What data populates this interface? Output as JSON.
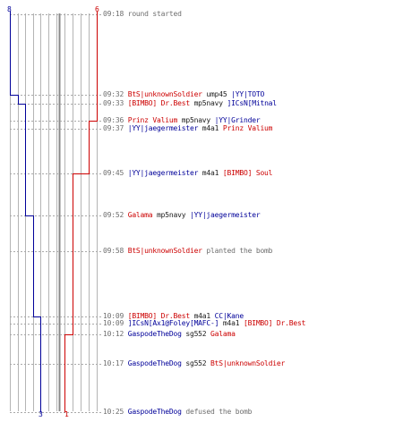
{
  "colors": {
    "t_team": "#cc0000",
    "ct_team": "#000099",
    "time": "#6e6e6e",
    "text": "#1a1a1a",
    "grid": "#b4b4b4",
    "divider": "#8a8a8a"
  },
  "chart_data": {
    "type": "line",
    "title": "",
    "xlabel": "",
    "ylabel": "",
    "ylim": [
      0,
      8
    ],
    "series": [
      {
        "side": "left",
        "color": "#000099",
        "top_label": "8",
        "bottom_label": "3",
        "steps": [
          {
            "time": "09:18",
            "value": 8
          },
          {
            "time": "09:32",
            "value": 7
          },
          {
            "time": "09:33",
            "value": 6
          },
          {
            "time": "09:52",
            "value": 5
          },
          {
            "time": "10:09",
            "value": 4
          },
          {
            "time": "10:25",
            "value": 3
          }
        ]
      },
      {
        "side": "right",
        "color": "#cc0000",
        "top_label": "6",
        "bottom_label": "1",
        "steps": [
          {
            "time": "09:18",
            "value": 6
          },
          {
            "time": "09:36",
            "value": 5
          },
          {
            "time": "09:37",
            "value": 5
          },
          {
            "time": "09:45",
            "value": 4
          },
          {
            "time": "10:12",
            "value": 3
          },
          {
            "time": "10:17",
            "value": 2
          },
          {
            "time": "10:25",
            "value": 1
          }
        ]
      }
    ],
    "events": [
      {
        "time": "09:18",
        "parts": [
          {
            "text": "round started",
            "c": "t"
          }
        ]
      },
      {
        "time": "09:32",
        "parts": [
          {
            "text": "BtS|unknownSoldier",
            "c": "r"
          },
          {
            "text": " ump45 ",
            "c": "a"
          },
          {
            "text": "|YY|TOTO",
            "c": "b"
          }
        ]
      },
      {
        "time": "09:33",
        "parts": [
          {
            "text": "[BIMBO] Dr.Best",
            "c": "r"
          },
          {
            "text": " mp5navy ",
            "c": "a"
          },
          {
            "text": "]ICsN[Mitnal",
            "c": "b"
          }
        ]
      },
      {
        "time": "09:36",
        "parts": [
          {
            "text": "Prinz Valium",
            "c": "r"
          },
          {
            "text": " mp5navy ",
            "c": "a"
          },
          {
            "text": "|YY|Grinder",
            "c": "b"
          }
        ]
      },
      {
        "time": "09:37",
        "parts": [
          {
            "text": "|YY|jaegermeister",
            "c": "b"
          },
          {
            "text": " m4a1 ",
            "c": "a"
          },
          {
            "text": "Prinz Valium",
            "c": "r"
          }
        ]
      },
      {
        "time": "09:45",
        "parts": [
          {
            "text": "|YY|jaegermeister",
            "c": "b"
          },
          {
            "text": " m4a1 ",
            "c": "a"
          },
          {
            "text": "[BIMBO] Soul",
            "c": "r"
          }
        ]
      },
      {
        "time": "09:52",
        "parts": [
          {
            "text": "Galama",
            "c": "r"
          },
          {
            "text": " mp5navy ",
            "c": "a"
          },
          {
            "text": "|YY|jaegermeister",
            "c": "b"
          }
        ]
      },
      {
        "time": "09:58",
        "parts": [
          {
            "text": "BtS|unknownSoldier",
            "c": "r"
          },
          {
            "text": " planted the bomb",
            "c": "t"
          }
        ]
      },
      {
        "time": "10:09",
        "parts": [
          {
            "text": "[BIMBO] Dr.Best",
            "c": "r"
          },
          {
            "text": " m4a1 ",
            "c": "a"
          },
          {
            "text": "CC|Kane",
            "c": "b"
          }
        ]
      },
      {
        "time": "10:09",
        "parts": [
          {
            "text": "]ICsN[Ax1@Foley[MAFC-]",
            "c": "b"
          },
          {
            "text": " m4a1 ",
            "c": "a"
          },
          {
            "text": "[BIMBO] Dr.Best",
            "c": "r"
          }
        ]
      },
      {
        "time": "10:12",
        "parts": [
          {
            "text": "GaspodeTheDog",
            "c": "b"
          },
          {
            "text": " sg552 ",
            "c": "a"
          },
          {
            "text": "Galama",
            "c": "r"
          }
        ]
      },
      {
        "time": "10:17",
        "parts": [
          {
            "text": "GaspodeTheDog",
            "c": "b"
          },
          {
            "text": " sg552 ",
            "c": "a"
          },
          {
            "text": "BtS|unknownSoldier",
            "c": "r"
          }
        ]
      },
      {
        "time": "10:25",
        "parts": [
          {
            "text": "GaspodeTheDog",
            "c": "b"
          },
          {
            "text": " defused the bomb",
            "c": "t"
          }
        ]
      }
    ]
  }
}
